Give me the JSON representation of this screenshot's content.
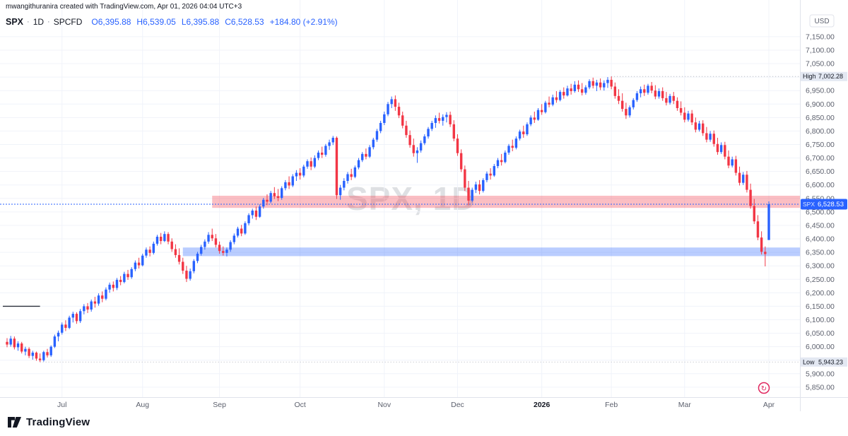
{
  "attribution": "mwangithuranira created with TradingView.com, Apr 01, 2026 04:04 UTC+3",
  "legend": {
    "symbol": "SPX",
    "sep1": "·",
    "interval": "1D",
    "sep2": "·",
    "exchange": "SPCFD",
    "ohlc": {
      "o": "O6,395.88",
      "h": "H6,539.05",
      "l": "L6,395.88",
      "c": "C6,528.53",
      "change": "+184.80 (+2.91%)"
    }
  },
  "watermark": "SPX, 1D",
  "footer": {
    "brand": "TradingView"
  },
  "icons": {
    "event_marker": "↻"
  },
  "axis": {
    "currency": "USD",
    "price_ticks": [
      7150,
      7100,
      7050,
      7000,
      6950,
      6900,
      6850,
      6800,
      6750,
      6700,
      6650,
      6600,
      6550,
      6500,
      6450,
      6400,
      6350,
      6300,
      6250,
      6200,
      6150,
      6100,
      6050,
      6000,
      5950,
      5900,
      5850
    ],
    "time_labels": [
      {
        "label": "Jul",
        "index": 15
      },
      {
        "label": "Aug",
        "index": 37
      },
      {
        "label": "Sep",
        "index": 58
      },
      {
        "label": "Oct",
        "index": 80
      },
      {
        "label": "Nov",
        "index": 103
      },
      {
        "label": "Dec",
        "index": 123
      },
      {
        "label": "2026",
        "index": 146,
        "bold": true
      },
      {
        "label": "Feb",
        "index": 165
      },
      {
        "label": "Mar",
        "index": 185
      },
      {
        "label": "Apr",
        "index": 208
      }
    ]
  },
  "chart_data": {
    "type": "candlestick",
    "symbol": "SPX",
    "interval": "1D",
    "up_color": "#2962FF",
    "down_color": "#F23645",
    "y_range": {
      "top": 7286,
      "bottom": 5813
    },
    "high": {
      "index": 165,
      "value": 7002.28,
      "label": "High"
    },
    "low": {
      "index": 9,
      "value": 5943.23,
      "label": "Low"
    },
    "last": {
      "value": 6528.53,
      "symbol": "SPX"
    },
    "zones": [
      {
        "name": "resistance",
        "from": 6515,
        "to": 6560,
        "start_index": 56,
        "color": "rgba(242,54,69,0.32)"
      },
      {
        "name": "support",
        "from": 6336,
        "to": 6368,
        "start_index": 48,
        "color": "rgba(41,98,255,0.32)"
      }
    ],
    "hline": {
      "price": 6150,
      "from_index": 0,
      "to_index": 9
    },
    "candles": [
      [
        6018,
        6032,
        5998,
        6008
      ],
      [
        6008,
        6040,
        6000,
        6030
      ],
      [
        6030,
        6038,
        5990,
        5998
      ],
      [
        5998,
        6020,
        5985,
        6012
      ],
      [
        6012,
        6018,
        5975,
        5982
      ],
      [
        5982,
        6000,
        5968,
        5992
      ],
      [
        5992,
        5998,
        5958,
        5966
      ],
      [
        5966,
        5985,
        5952,
        5978
      ],
      [
        5978,
        5982,
        5948,
        5956
      ],
      [
        5956,
        5975,
        5943.23,
        5950
      ],
      [
        5950,
        5985,
        5945,
        5980
      ],
      [
        5980,
        5992,
        5960,
        5968
      ],
      [
        5968,
        6005,
        5962,
        6000
      ],
      [
        6000,
        6045,
        5995,
        6038
      ],
      [
        6038,
        6060,
        6020,
        6052
      ],
      [
        6052,
        6090,
        6045,
        6082
      ],
      [
        6082,
        6098,
        6058,
        6070
      ],
      [
        6070,
        6115,
        6065,
        6108
      ],
      [
        6108,
        6130,
        6090,
        6122
      ],
      [
        6122,
        6128,
        6085,
        6095
      ],
      [
        6095,
        6140,
        6088,
        6132
      ],
      [
        6132,
        6158,
        6120,
        6150
      ],
      [
        6150,
        6162,
        6125,
        6138
      ],
      [
        6138,
        6175,
        6130,
        6168
      ],
      [
        6168,
        6185,
        6145,
        6160
      ],
      [
        6160,
        6198,
        6152,
        6190
      ],
      [
        6190,
        6205,
        6165,
        6178
      ],
      [
        6178,
        6220,
        6172,
        6212
      ],
      [
        6212,
        6238,
        6200,
        6230
      ],
      [
        6230,
        6242,
        6205,
        6218
      ],
      [
        6218,
        6255,
        6210,
        6248
      ],
      [
        6248,
        6262,
        6228,
        6240
      ],
      [
        6240,
        6278,
        6235,
        6270
      ],
      [
        6270,
        6285,
        6248,
        6258
      ],
      [
        6258,
        6295,
        6252,
        6288
      ],
      [
        6288,
        6320,
        6280,
        6312
      ],
      [
        6312,
        6330,
        6290,
        6302
      ],
      [
        6302,
        6345,
        6298,
        6338
      ],
      [
        6338,
        6368,
        6330,
        6360
      ],
      [
        6360,
        6372,
        6335,
        6348
      ],
      [
        6348,
        6390,
        6342,
        6382
      ],
      [
        6382,
        6415,
        6375,
        6408
      ],
      [
        6408,
        6422,
        6380,
        6392
      ],
      [
        6392,
        6428,
        6388,
        6418
      ],
      [
        6418,
        6425,
        6380,
        6390
      ],
      [
        6390,
        6402,
        6352,
        6362
      ],
      [
        6362,
        6380,
        6330,
        6340
      ],
      [
        6340,
        6365,
        6305,
        6315
      ],
      [
        6315,
        6330,
        6270,
        6282
      ],
      [
        6282,
        6300,
        6240,
        6252
      ],
      [
        6252,
        6290,
        6245,
        6280
      ],
      [
        6280,
        6325,
        6272,
        6318
      ],
      [
        6318,
        6352,
        6310,
        6345
      ],
      [
        6345,
        6378,
        6338,
        6370
      ],
      [
        6370,
        6398,
        6360,
        6390
      ],
      [
        6390,
        6425,
        6382,
        6415
      ],
      [
        6415,
        6438,
        6392,
        6402
      ],
      [
        6402,
        6418,
        6368,
        6378
      ],
      [
        6378,
        6390,
        6345,
        6355
      ],
      [
        6355,
        6372,
        6338,
        6348
      ],
      [
        6348,
        6368,
        6335,
        6360
      ],
      [
        6360,
        6395,
        6352,
        6388
      ],
      [
        6388,
        6420,
        6380,
        6412
      ],
      [
        6412,
        6445,
        6405,
        6438
      ],
      [
        6438,
        6452,
        6410,
        6420
      ],
      [
        6420,
        6465,
        6415,
        6458
      ],
      [
        6458,
        6495,
        6450,
        6488
      ],
      [
        6488,
        6512,
        6475,
        6505
      ],
      [
        6505,
        6520,
        6470,
        6482
      ],
      [
        6482,
        6528,
        6478,
        6520
      ],
      [
        6520,
        6552,
        6512,
        6545
      ],
      [
        6545,
        6565,
        6525,
        6538
      ],
      [
        6538,
        6578,
        6532,
        6570
      ],
      [
        6570,
        6592,
        6548,
        6558
      ],
      [
        6558,
        6585,
        6540,
        6552
      ],
      [
        6552,
        6595,
        6545,
        6588
      ],
      [
        6588,
        6618,
        6580,
        6610
      ],
      [
        6610,
        6632,
        6585,
        6598
      ],
      [
        6598,
        6640,
        6592,
        6632
      ],
      [
        6632,
        6655,
        6615,
        6645
      ],
      [
        6645,
        6662,
        6620,
        6635
      ],
      [
        6635,
        6675,
        6628,
        6668
      ],
      [
        6668,
        6695,
        6660,
        6688
      ],
      [
        6688,
        6702,
        6655,
        6668
      ],
      [
        6668,
        6710,
        6662,
        6700
      ],
      [
        6700,
        6728,
        6692,
        6720
      ],
      [
        6720,
        6742,
        6700,
        6712
      ],
      [
        6712,
        6752,
        6705,
        6745
      ],
      [
        6745,
        6768,
        6730,
        6758
      ],
      [
        6758,
        6782,
        6748,
        6775
      ],
      [
        6775,
        6780,
        6548,
        6562
      ],
      [
        6562,
        6600,
        6545,
        6590
      ],
      [
        6590,
        6625,
        6580,
        6615
      ],
      [
        6615,
        6648,
        6605,
        6640
      ],
      [
        6640,
        6660,
        6618,
        6630
      ],
      [
        6630,
        6672,
        6625,
        6665
      ],
      [
        6665,
        6700,
        6658,
        6692
      ],
      [
        6692,
        6722,
        6685,
        6715
      ],
      [
        6715,
        6735,
        6695,
        6705
      ],
      [
        6705,
        6748,
        6700,
        6740
      ],
      [
        6740,
        6775,
        6732,
        6768
      ],
      [
        6768,
        6808,
        6760,
        6800
      ],
      [
        6800,
        6838,
        6792,
        6830
      ],
      [
        6830,
        6872,
        6822,
        6862
      ],
      [
        6862,
        6908,
        6855,
        6900
      ],
      [
        6900,
        6928,
        6885,
        6918
      ],
      [
        6918,
        6932,
        6875,
        6890
      ],
      [
        6890,
        6905,
        6848,
        6858
      ],
      [
        6858,
        6872,
        6810,
        6820
      ],
      [
        6820,
        6838,
        6775,
        6785
      ],
      [
        6785,
        6802,
        6738,
        6748
      ],
      [
        6748,
        6772,
        6705,
        6718
      ],
      [
        6718,
        6740,
        6682,
        6728
      ],
      [
        6728,
        6765,
        6720,
        6755
      ],
      [
        6755,
        6788,
        6748,
        6780
      ],
      [
        6780,
        6815,
        6772,
        6808
      ],
      [
        6808,
        6838,
        6800,
        6830
      ],
      [
        6830,
        6858,
        6812,
        6848
      ],
      [
        6848,
        6868,
        6828,
        6838
      ],
      [
        6838,
        6862,
        6820,
        6852
      ],
      [
        6852,
        6870,
        6832,
        6860
      ],
      [
        6860,
        6872,
        6815,
        6825
      ],
      [
        6825,
        6840,
        6762,
        6772
      ],
      [
        6772,
        6788,
        6708,
        6718
      ],
      [
        6718,
        6732,
        6648,
        6658
      ],
      [
        6658,
        6672,
        6578,
        6590
      ],
      [
        6590,
        6615,
        6525,
        6542
      ],
      [
        6542,
        6590,
        6535,
        6582
      ],
      [
        6582,
        6612,
        6570,
        6602
      ],
      [
        6602,
        6618,
        6565,
        6578
      ],
      [
        6578,
        6625,
        6572,
        6618
      ],
      [
        6618,
        6650,
        6610,
        6642
      ],
      [
        6642,
        6662,
        6620,
        6635
      ],
      [
        6635,
        6678,
        6630,
        6670
      ],
      [
        6670,
        6700,
        6662,
        6692
      ],
      [
        6692,
        6715,
        6672,
        6685
      ],
      [
        6685,
        6728,
        6680,
        6720
      ],
      [
        6720,
        6752,
        6712,
        6745
      ],
      [
        6745,
        6768,
        6725,
        6738
      ],
      [
        6738,
        6780,
        6732,
        6772
      ],
      [
        6772,
        6805,
        6765,
        6798
      ],
      [
        6798,
        6820,
        6775,
        6788
      ],
      [
        6788,
        6832,
        6782,
        6825
      ],
      [
        6825,
        6858,
        6818,
        6850
      ],
      [
        6850,
        6872,
        6830,
        6842
      ],
      [
        6842,
        6885,
        6838,
        6878
      ],
      [
        6878,
        6900,
        6860,
        6870
      ],
      [
        6870,
        6912,
        6865,
        6905
      ],
      [
        6905,
        6928,
        6888,
        6898
      ],
      [
        6898,
        6935,
        6892,
        6925
      ],
      [
        6925,
        6948,
        6905,
        6915
      ],
      [
        6915,
        6952,
        6910,
        6945
      ],
      [
        6945,
        6962,
        6920,
        6932
      ],
      [
        6932,
        6968,
        6928,
        6958
      ],
      [
        6958,
        6975,
        6935,
        6948
      ],
      [
        6948,
        6985,
        6942,
        6972
      ],
      [
        6972,
        6988,
        6945,
        6955
      ],
      [
        6955,
        6978,
        6932,
        6942
      ],
      [
        6942,
        6970,
        6935,
        6962
      ],
      [
        6962,
        6992,
        6955,
        6985
      ],
      [
        6985,
        6998,
        6958,
        6968
      ],
      [
        6968,
        6990,
        6948,
        6980
      ],
      [
        6980,
        6995,
        6952,
        6962
      ],
      [
        6962,
        6988,
        6950,
        6978
      ],
      [
        6978,
        7000,
        6960,
        6990
      ],
      [
        6990,
        7002.28,
        6955,
        6965
      ],
      [
        6965,
        6980,
        6920,
        6930
      ],
      [
        6930,
        6955,
        6900,
        6912
      ],
      [
        6912,
        6940,
        6872,
        6882
      ],
      [
        6882,
        6905,
        6845,
        6858
      ],
      [
        6858,
        6895,
        6850,
        6888
      ],
      [
        6888,
        6922,
        6880,
        6915
      ],
      [
        6915,
        6948,
        6908,
        6940
      ],
      [
        6940,
        6965,
        6925,
        6955
      ],
      [
        6955,
        6972,
        6930,
        6942
      ],
      [
        6942,
        6975,
        6935,
        6968
      ],
      [
        6968,
        6982,
        6940,
        6950
      ],
      [
        6950,
        6970,
        6918,
        6928
      ],
      [
        6928,
        6958,
        6920,
        6948
      ],
      [
        6948,
        6962,
        6912,
        6922
      ],
      [
        6922,
        6945,
        6895,
        6905
      ],
      [
        6905,
        6938,
        6898,
        6930
      ],
      [
        6930,
        6945,
        6900,
        6912
      ],
      [
        6912,
        6925,
        6875,
        6885
      ],
      [
        6885,
        6910,
        6858,
        6868
      ],
      [
        6868,
        6888,
        6832,
        6842
      ],
      [
        6842,
        6875,
        6835,
        6865
      ],
      [
        6865,
        6878,
        6822,
        6832
      ],
      [
        6832,
        6850,
        6795,
        6805
      ],
      [
        6805,
        6838,
        6798,
        6828
      ],
      [
        6828,
        6840,
        6782,
        6792
      ],
      [
        6792,
        6815,
        6758,
        6768
      ],
      [
        6768,
        6800,
        6760,
        6790
      ],
      [
        6790,
        6802,
        6742,
        6752
      ],
      [
        6752,
        6775,
        6712,
        6722
      ],
      [
        6722,
        6758,
        6715,
        6748
      ],
      [
        6748,
        6760,
        6695,
        6705
      ],
      [
        6705,
        6728,
        6662,
        6672
      ],
      [
        6672,
        6705,
        6665,
        6695
      ],
      [
        6695,
        6708,
        6635,
        6645
      ],
      [
        6645,
        6668,
        6598,
        6608
      ],
      [
        6608,
        6648,
        6600,
        6638
      ],
      [
        6638,
        6652,
        6572,
        6582
      ],
      [
        6582,
        6605,
        6512,
        6522
      ],
      [
        6522,
        6548,
        6455,
        6465
      ],
      [
        6465,
        6488,
        6395,
        6405
      ],
      [
        6405,
        6428,
        6342,
        6352
      ],
      [
        6352,
        6372,
        6298,
        6343.73
      ],
      [
        6395.88,
        6539.05,
        6395.88,
        6528.53
      ]
    ]
  }
}
